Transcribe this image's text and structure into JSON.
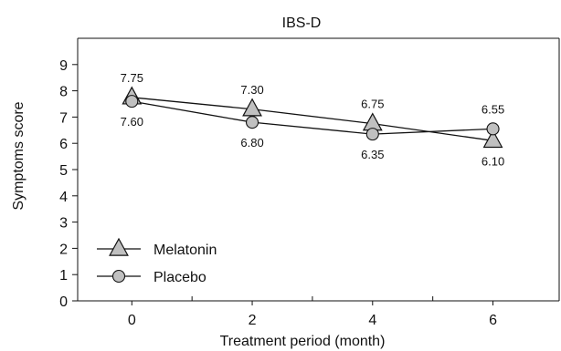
{
  "chart_data": {
    "type": "line",
    "title": "IBS-D",
    "xlabel": "Treatment period (month)",
    "ylabel": "Symptoms score",
    "x": [
      0,
      2,
      4,
      6
    ],
    "x_tick_labels": [
      "0",
      "2",
      "4",
      "6"
    ],
    "y_tick_labels": [
      "0",
      "1",
      "2",
      "3",
      "4",
      "5",
      "6",
      "7",
      "8",
      "9"
    ],
    "xlim": [
      -0.9,
      7.1
    ],
    "ylim": [
      0,
      10
    ],
    "grid": false,
    "legend_position": "bottom-left",
    "series": [
      {
        "name": "Melatonin",
        "marker": "triangle",
        "values": [
          7.75,
          7.3,
          6.75,
          6.1
        ],
        "labels": [
          "7.75",
          "7.30",
          "6.75",
          "6.10"
        ],
        "label_side": [
          "above",
          "above",
          "above",
          "below"
        ]
      },
      {
        "name": "Placebo",
        "marker": "circle",
        "values": [
          7.6,
          6.8,
          6.35,
          6.55
        ],
        "labels": [
          "7.60",
          "6.80",
          "6.35",
          "6.55"
        ],
        "label_side": [
          "below",
          "below",
          "below",
          "above"
        ]
      }
    ],
    "colors": {
      "marker_fill": "#c0c0c0",
      "stroke": "#111111"
    }
  }
}
